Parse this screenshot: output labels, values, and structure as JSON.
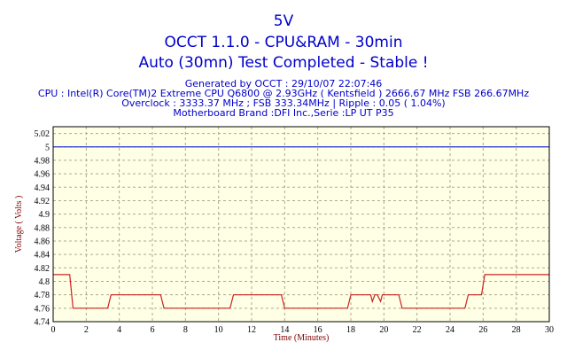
{
  "header": {
    "title": "5V",
    "subtitle": "OCCT 1.1.0 - CPU&RAM - 30min",
    "status": "Auto (30mn) Test Completed - Stable !",
    "info": [
      "Generated by OCCT : 29/10/07 22:07:46",
      "CPU : Intel(R) Core(TM)2 Extreme CPU Q6800  @ 2.93GHz ( Kentsfield ) 2666.67 MHz FSB 266.67MHz",
      "Overclock : 3333.37 MHz ; FSB 333.34MHz | Ripple : 0.05 ( 1.04%)",
      "Motherboard Brand :DFI Inc.,Serie :LP UT P35"
    ]
  },
  "colors": {
    "text_blue": "#0000cc",
    "plot_bg": "#ffffe6",
    "grid": "#b0a888",
    "voltage_line": "#cc2222",
    "reference_line": "#2233cc",
    "axis_label": "#800000"
  },
  "chart_data": {
    "type": "line",
    "xlabel": "Time (Minutes)",
    "ylabel": "Voltage ( Volts )",
    "xlim": [
      0,
      30
    ],
    "ylim": [
      4.74,
      5.03
    ],
    "x_ticks": [
      0,
      2,
      4,
      6,
      8,
      10,
      12,
      14,
      16,
      18,
      20,
      22,
      24,
      26,
      28,
      30
    ],
    "y_ticks": [
      4.74,
      4.76,
      4.78,
      4.8,
      4.82,
      4.84,
      4.86,
      4.88,
      4.9,
      4.92,
      4.94,
      4.96,
      4.98,
      5,
      5.02
    ],
    "y_tick_labels": [
      "4.74",
      "4.76",
      "4.78",
      "4.8",
      "4.82",
      "4.84",
      "4.86",
      "4.88",
      "4.9",
      "4.92",
      "4.94",
      "4.96",
      "4.98",
      "5",
      "5.02"
    ],
    "grid": true,
    "reference": {
      "y": 5.0
    },
    "series": [
      {
        "x": [
          0,
          1.0,
          1.2,
          3.3,
          3.5,
          6.5,
          6.7,
          10.7,
          10.9,
          13.8,
          14.0,
          17.8,
          18.0,
          18.1,
          18.3,
          19.2,
          19.3,
          19.45,
          19.6,
          19.8,
          19.9,
          20.1,
          20.9,
          21.1,
          24.9,
          25.1,
          25.9,
          26.1,
          30
        ],
        "y": [
          4.81,
          4.81,
          4.76,
          4.76,
          4.78,
          4.78,
          4.76,
          4.76,
          4.78,
          4.78,
          4.76,
          4.76,
          4.78,
          4.78,
          4.78,
          4.78,
          4.77,
          4.78,
          4.78,
          4.77,
          4.78,
          4.78,
          4.78,
          4.76,
          4.76,
          4.78,
          4.78,
          4.81,
          4.81
        ]
      }
    ]
  }
}
